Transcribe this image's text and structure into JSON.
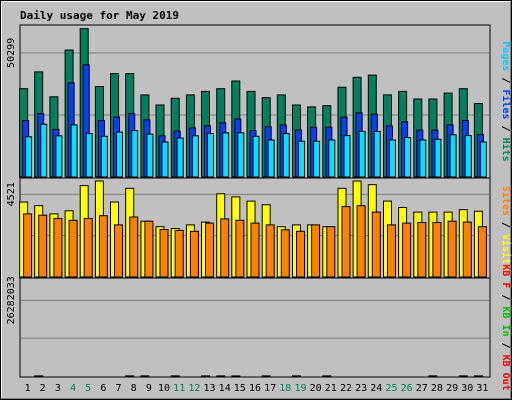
{
  "chart_data": {
    "type": "bar",
    "title": "Daily usage for May 2019",
    "categories": [
      "1",
      "2",
      "3",
      "4",
      "5",
      "6",
      "7",
      "8",
      "9",
      "10",
      "11",
      "12",
      "13",
      "14",
      "15",
      "16",
      "17",
      "18",
      "19",
      "20",
      "21",
      "22",
      "23",
      "24",
      "25",
      "26",
      "27",
      "28",
      "29",
      "30",
      "31"
    ],
    "weekend_days": [
      "4",
      "5",
      "11",
      "12",
      "18",
      "19",
      "25",
      "26"
    ],
    "colors": {
      "title": "#0000ff",
      "background": "#c0c0c0",
      "hits": "#00805c",
      "files": "#0040ff",
      "pages": "#00e0ff",
      "visits": "#ffff00",
      "sites": "#ff8000",
      "kb_in": "#00c000",
      "kb_out": "#ff0000",
      "weekday_label": "#000000",
      "weekend_label": "#00805c"
    },
    "panels": [
      {
        "id": "hits-files-pages",
        "ytick_label": "50299",
        "ymax": 60400,
        "ytick_value": 50299,
        "legend": [
          {
            "label": "Pages",
            "color": "#00c8ff"
          },
          {
            "label": "Files",
            "color": "#0040ff"
          },
          {
            "label": "Hits",
            "color": "#00805c"
          }
        ],
        "series": [
          {
            "name": "Hits",
            "values": [
              35800,
              42600,
              32500,
              51500,
              60100,
              36700,
              41900,
              41900,
              33300,
              29200,
              31900,
              33300,
              34700,
              35800,
              38900,
              34700,
              32200,
              33300,
              29200,
              28400,
              28900,
              36400,
              40400,
              41300,
              33300,
              34700,
              31600,
              31600,
              34000,
              35800,
              29800
            ]
          },
          {
            "name": "Files",
            "values": [
              22900,
              25700,
              19300,
              38200,
              45500,
              22900,
              24300,
              25700,
              23200,
              16700,
              18600,
              19900,
              20700,
              22000,
              23500,
              18800,
              20400,
              21100,
              19000,
              20200,
              20200,
              24300,
              26000,
              25500,
              20700,
              22400,
              19000,
              19000,
              21100,
              22900,
              17200
            ]
          },
          {
            "name": "Pages",
            "values": [
              16300,
              21400,
              16700,
              21100,
              17600,
              16500,
              18200,
              18800,
              17400,
              14200,
              15800,
              16700,
              17600,
              17900,
              17900,
              16500,
              15000,
              17600,
              14500,
              14500,
              15000,
              16800,
              18500,
              18500,
              15000,
              16000,
              15000,
              15300,
              17100,
              16800,
              14200
            ]
          }
        ]
      },
      {
        "id": "visits-sites",
        "ytick_label": "4521",
        "ymax": 5250,
        "ytick_value": 4521,
        "legend": [
          {
            "label": "Sites",
            "color": "#ff8000"
          },
          {
            "label": "Visits",
            "color": "#ffff00"
          }
        ],
        "series": [
          {
            "name": "Visits",
            "values": [
              4100,
              3900,
              3450,
              3620,
              5000,
              5250,
              4100,
              4850,
              3050,
              2750,
              2650,
              2850,
              3000,
              4550,
              4380,
              4150,
              3950,
              2750,
              2850,
              2850,
              2750,
              4850,
              5250,
              5050,
              4150,
              3800,
              3550,
              3550,
              3550,
              3680,
              3600
            ]
          },
          {
            "name": "Sites",
            "values": [
              3450,
              3380,
              3200,
              3100,
              3200,
              3350,
              2850,
              3280,
              3050,
              2600,
              2550,
              2500,
              2950,
              3180,
              3100,
              2950,
              2850,
              2580,
              2500,
              2850,
              2750,
              3850,
              3900,
              3550,
              2850,
              2950,
              2980,
              2980,
              3050,
              3000,
              2750
            ]
          }
        ]
      },
      {
        "id": "kb-out-in",
        "ytick_label": "26282033",
        "ymax": 33000000,
        "ytick_value": 26282033,
        "legend": [
          {
            "label": "KB F",
            "color": "#ff0000"
          },
          {
            "label": "KB In",
            "color": "#00c000"
          },
          {
            "label": "KB Out",
            "color": "#ff0000"
          }
        ],
        "series": [
          {
            "name": "KB F",
            "values": [
              11500,
              32000,
              16800,
              16000,
              12500,
              8200,
              16800,
              19500,
              17900,
              10700,
              17900,
              13800,
              23500,
              30000,
              20200,
              9900,
              22800,
              14500,
              17900,
              12500,
              19500,
              7800,
              11500,
              12500,
              15200,
              11500,
              12500,
              23500,
              15200,
              29200,
              18200
            ]
          }
        ]
      }
    ]
  }
}
